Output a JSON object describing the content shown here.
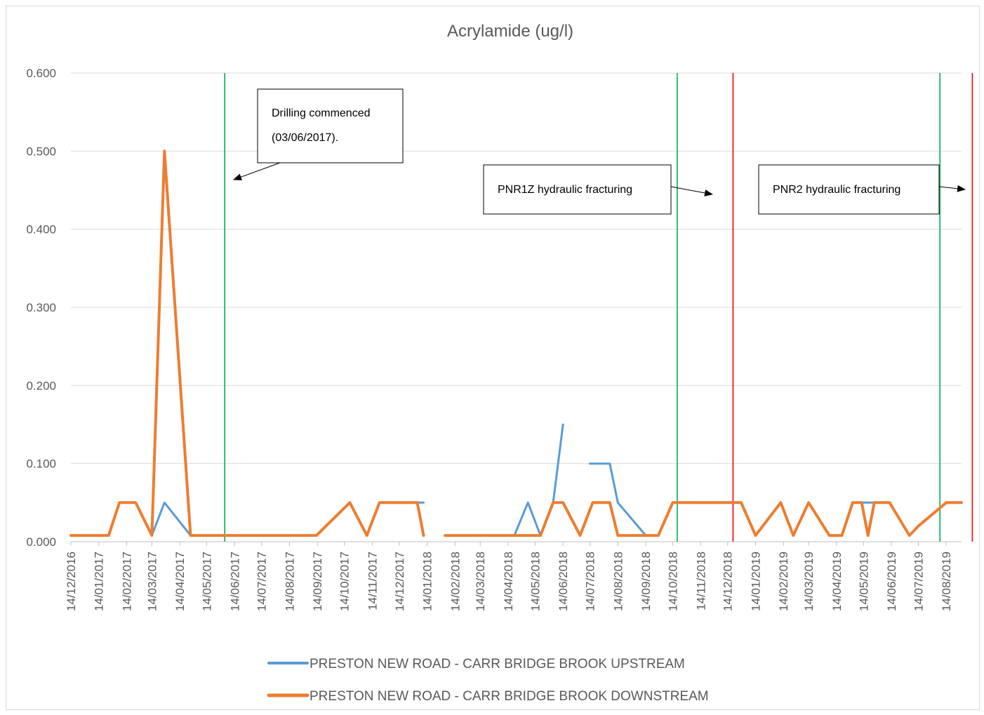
{
  "chart_data": {
    "type": "line",
    "title": "Acrylamide (ug/l)",
    "ylim": [
      0,
      0.6
    ],
    "y_ticks": [
      "0.000",
      "0.100",
      "0.200",
      "0.300",
      "0.400",
      "0.500",
      "0.600"
    ],
    "y_tick_values": [
      0,
      0.1,
      0.2,
      0.3,
      0.4,
      0.5,
      0.6
    ],
    "x_range": [
      "2016-12-14",
      "2019-08-31"
    ],
    "x_ticks": [
      "14/12/2016",
      "14/01/2017",
      "14/02/2017",
      "14/03/2017",
      "14/04/2017",
      "14/05/2017",
      "14/06/2017",
      "14/07/2017",
      "14/08/2017",
      "14/09/2017",
      "14/10/2017",
      "14/11/2017",
      "14/12/2017",
      "14/01/2018",
      "14/02/2018",
      "14/03/2018",
      "14/04/2018",
      "14/05/2018",
      "14/06/2018",
      "14/07/2018",
      "14/08/2018",
      "14/09/2018",
      "14/10/2018",
      "14/11/2018",
      "14/12/2018",
      "14/01/2019",
      "14/02/2019",
      "14/03/2019",
      "14/04/2019",
      "14/05/2019",
      "14/06/2019",
      "14/07/2019",
      "14/08/2019"
    ],
    "x_tick_dates": [
      "2016-12-14",
      "2017-01-14",
      "2017-02-14",
      "2017-03-14",
      "2017-04-14",
      "2017-05-14",
      "2017-06-14",
      "2017-07-14",
      "2017-08-14",
      "2017-09-14",
      "2017-10-14",
      "2017-11-14",
      "2017-12-14",
      "2018-01-14",
      "2018-02-14",
      "2018-03-14",
      "2018-04-14",
      "2018-05-14",
      "2018-06-14",
      "2018-07-14",
      "2018-08-14",
      "2018-09-14",
      "2018-10-14",
      "2018-11-14",
      "2018-12-14",
      "2019-01-14",
      "2019-02-14",
      "2019-03-14",
      "2019-04-14",
      "2019-05-14",
      "2019-06-14",
      "2019-07-14",
      "2019-08-14"
    ],
    "grid": "horizontal",
    "legend_position": "bottom",
    "series": [
      {
        "name": "PRESTON NEW ROAD - CARR BRIDGE BROOK UPSTREAM",
        "color": "#5b9bd5",
        "segments": [
          {
            "x": [
              "2016-12-14",
              "2017-01-04",
              "2017-01-25",
              "2017-02-06",
              "2017-02-24",
              "2017-03-14",
              "2017-03-28",
              "2017-04-26",
              "2017-05-17",
              "2017-06-14",
              "2017-07-12",
              "2017-08-09",
              "2017-09-06",
              "2017-09-13",
              "2017-10-20",
              "2017-11-08",
              "2017-11-22",
              "2017-12-13",
              "2018-01-03",
              "2018-01-10"
            ],
            "y": [
              0.008,
              0.008,
              0.008,
              0.05,
              0.05,
              0.008,
              0.05,
              0.008,
              0.008,
              0.008,
              0.008,
              0.008,
              0.008,
              0.008,
              0.05,
              0.008,
              0.05,
              0.05,
              0.05,
              0.05
            ]
          },
          {
            "x": [
              "2018-02-03",
              "2018-02-24",
              "2018-03-17",
              "2018-04-07",
              "2018-04-21",
              "2018-05-06",
              "2018-05-20",
              "2018-06-03",
              "2018-06-14"
            ],
            "y": [
              0.008,
              0.008,
              0.008,
              0.008,
              0.008,
              0.05,
              0.008,
              0.05,
              0.15
            ]
          },
          {
            "x": [
              "2018-07-14",
              "2018-08-05",
              "2018-08-14",
              "2018-09-14",
              "2018-09-28",
              "2018-10-14",
              "2018-11-14",
              "2018-12-14",
              "2018-12-29",
              "2019-01-14",
              "2019-02-11",
              "2019-02-25",
              "2019-03-14",
              "2019-04-06",
              "2019-04-20",
              "2019-05-02",
              "2019-05-19",
              "2019-06-12",
              "2019-07-04",
              "2019-07-14",
              "2019-08-14",
              "2019-08-31"
            ],
            "y": [
              0.1,
              0.1,
              0.05,
              0.008,
              0.008,
              0.05,
              0.05,
              0.05,
              0.05,
              0.008,
              0.05,
              0.008,
              0.05,
              0.008,
              0.008,
              0.05,
              0.05,
              0.05,
              0.008,
              0.02,
              0.05,
              0.05
            ]
          }
        ]
      },
      {
        "name": "PRESTON NEW ROAD - CARR BRIDGE BROOK DOWNSTREAM",
        "color": "#ed7d31",
        "segments": [
          {
            "x": [
              "2016-12-14",
              "2017-01-04",
              "2017-01-25",
              "2017-02-06",
              "2017-02-24",
              "2017-03-14",
              "2017-03-28",
              "2017-04-26",
              "2017-05-17",
              "2017-06-14",
              "2017-07-12",
              "2017-08-09",
              "2017-09-06",
              "2017-09-13",
              "2017-10-20",
              "2017-11-08",
              "2017-11-22",
              "2017-12-13",
              "2018-01-03",
              "2018-01-10"
            ],
            "y": [
              0.008,
              0.008,
              0.008,
              0.05,
              0.05,
              0.008,
              0.5,
              0.008,
              0.008,
              0.008,
              0.008,
              0.008,
              0.008,
              0.008,
              0.05,
              0.008,
              0.05,
              0.05,
              0.05,
              0.008
            ]
          },
          {
            "x": [
              "2018-02-03",
              "2018-02-24",
              "2018-03-17",
              "2018-04-07",
              "2018-04-21",
              "2018-05-06",
              "2018-05-20",
              "2018-06-03",
              "2018-06-14",
              "2018-07-03",
              "2018-07-17",
              "2018-08-05",
              "2018-08-14",
              "2018-09-14",
              "2018-09-28",
              "2018-10-14",
              "2018-11-14",
              "2018-12-14",
              "2018-12-29",
              "2019-01-14",
              "2019-02-11",
              "2019-02-25",
              "2019-03-14",
              "2019-04-06",
              "2019-04-20",
              "2019-05-02",
              "2019-05-12",
              "2019-05-19",
              "2019-05-26",
              "2019-06-12",
              "2019-07-04",
              "2019-07-14",
              "2019-08-14",
              "2019-08-31"
            ],
            "y": [
              0.008,
              0.008,
              0.008,
              0.008,
              0.008,
              0.008,
              0.008,
              0.05,
              0.05,
              0.008,
              0.05,
              0.05,
              0.008,
              0.008,
              0.008,
              0.05,
              0.05,
              0.05,
              0.05,
              0.008,
              0.05,
              0.008,
              0.05,
              0.008,
              0.008,
              0.05,
              0.05,
              0.008,
              0.05,
              0.05,
              0.008,
              0.02,
              0.05,
              0.05
            ]
          }
        ]
      }
    ],
    "vertical_markers": [
      {
        "date": "2017-06-03",
        "color": "#00b050"
      },
      {
        "date": "2018-10-19",
        "color": "#00b050"
      },
      {
        "date": "2018-12-20",
        "color": "#ff0000"
      },
      {
        "date": "2019-08-07",
        "color": "#00b050"
      },
      {
        "date": "2019-09-12",
        "color": "#ff0000"
      }
    ],
    "annotations": [
      {
        "id": "drilling",
        "lines": [
          "Drilling commenced",
          "(03/06/2017)."
        ]
      },
      {
        "id": "pnr1z",
        "lines": [
          "PNR1Z hydraulic fracturing"
        ]
      },
      {
        "id": "pnr2",
        "lines": [
          "PNR2 hydraulic fracturing"
        ]
      }
    ]
  }
}
